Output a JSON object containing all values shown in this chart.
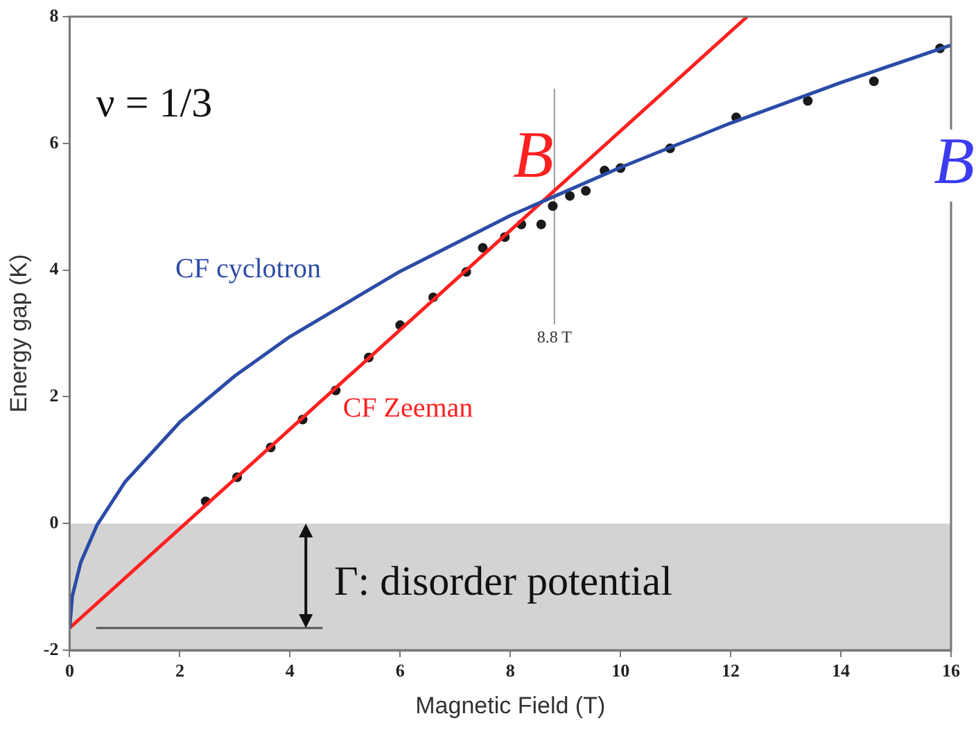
{
  "chart_data": {
    "type": "line",
    "xlabel": "Magnetic Field (T)",
    "ylabel": "Energy gap (K)",
    "xlim": [
      0,
      16
    ],
    "ylim": [
      -2,
      8
    ],
    "xticks": [
      0,
      2,
      4,
      6,
      8,
      10,
      12,
      14,
      16
    ],
    "yticks": [
      -2,
      0,
      2,
      4,
      6,
      8
    ],
    "series": [
      {
        "name": "CF cyclotron",
        "color": "#2b4ba6",
        "marker": "none",
        "x": [
          0,
          0.05,
          0.2,
          0.5,
          1,
          2,
          3,
          4,
          6,
          8,
          10,
          12,
          14,
          16
        ],
        "values": [
          -1.65,
          -1.14,
          -0.62,
          -0.02,
          0.65,
          1.6,
          2.33,
          2.95,
          3.98,
          4.86,
          5.62,
          6.32,
          6.96,
          7.55
        ]
      },
      {
        "name": "CF Zeeman",
        "color": "#ff2020",
        "marker": "none",
        "x": [
          0,
          12.3
        ],
        "values": [
          -1.65,
          8
        ]
      },
      {
        "type": "scatter",
        "color": "#1a1a1a",
        "marker": "circle",
        "x": [
          2.47,
          3.04,
          3.65,
          4.23,
          4.83,
          5.43,
          6.0,
          6.6,
          7.2,
          7.5,
          7.9,
          8.2,
          8.56,
          8.77,
          9.08,
          9.37,
          9.71,
          10.0,
          10.9,
          12.1,
          13.4,
          14.6,
          15.8
        ],
        "values": [
          0.35,
          0.73,
          1.2,
          1.64,
          2.1,
          2.62,
          3.13,
          3.57,
          3.97,
          4.35,
          4.52,
          4.72,
          4.72,
          5.01,
          5.17,
          5.25,
          5.57,
          5.61,
          5.92,
          6.41,
          6.67,
          6.98,
          7.5
        ]
      }
    ],
    "ref_lines": [
      {
        "axis": "x",
        "value": 8.8,
        "label": "8.8 T",
        "color": "#999999"
      }
    ],
    "bands": [
      {
        "axis": "y",
        "from": -2,
        "to": 0,
        "label": "Γ: disorder potential",
        "color": "#d3d3d3"
      }
    ],
    "annotations": [
      "ν = 1/3",
      "B",
      "B"
    ]
  }
}
